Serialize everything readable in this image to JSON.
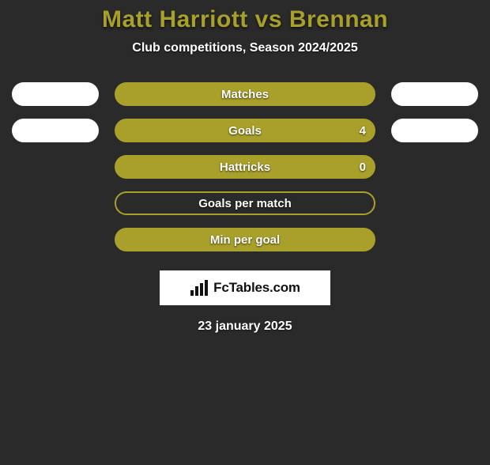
{
  "colors": {
    "background": "#2a2a2a",
    "title": "#a8a02a",
    "side_pill": "#ffffff",
    "bar_fill": "#a8a02a",
    "bar_border": "#a8a02a",
    "text": "#ffffff",
    "logo_bg": "#ffffff",
    "logo_text": "#111111"
  },
  "title": {
    "text": "Matt Harriott vs Brennan",
    "fontsize": 30
  },
  "subtitle": "Club competitions, Season 2024/2025",
  "rows": [
    {
      "label": "Matches",
      "fill_pct": 100,
      "show_sides": true,
      "value_right": null
    },
    {
      "label": "Goals",
      "fill_pct": 100,
      "show_sides": true,
      "value_right": "4"
    },
    {
      "label": "Hattricks",
      "fill_pct": 100,
      "show_sides": false,
      "value_right": "0"
    },
    {
      "label": "Goals per match",
      "fill_pct": 0,
      "show_sides": false,
      "value_right": null
    },
    {
      "label": "Min per goal",
      "fill_pct": 100,
      "show_sides": false,
      "value_right": null
    }
  ],
  "logo": "FcTables.com",
  "date": "23 january 2025",
  "layout": {
    "center_width": 330,
    "side_width": 110,
    "pill_height": 30,
    "row_gap": 16
  }
}
